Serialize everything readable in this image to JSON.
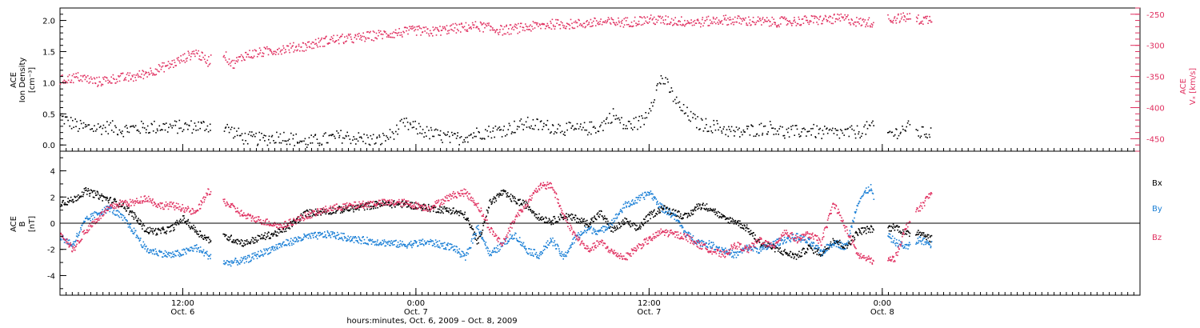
{
  "chart_data": [
    {
      "type": "scatter",
      "panel": "top",
      "ylabel_lines": [
        "ACE",
        "Ion Density",
        "[cm⁻³]"
      ],
      "y2label_lines": [
        "ACE",
        "Vₓ [km/s]"
      ],
      "ylim": [
        -0.1,
        2.2
      ],
      "y_ticks": [
        0.0,
        0.5,
        1.0,
        1.5,
        2.0
      ],
      "y_tick_labels": [
        "0.0",
        "0.5",
        "1.0",
        "1.5",
        "2.0"
      ],
      "y2lim": [
        -470,
        -240
      ],
      "y2_ticks": [
        -450,
        -400,
        -350,
        -300,
        -250
      ],
      "y2_tick_labels": [
        "-450",
        "-400",
        "-350",
        "-300",
        "-250"
      ],
      "series": [
        {
          "color": "#000000",
          "axis": "left",
          "t": [
            0,
            3,
            6,
            8,
            10,
            12,
            16,
            20,
            24,
            27,
            30,
            33,
            36,
            40,
            43,
            46,
            48,
            50,
            52,
            54,
            56,
            60,
            64,
            68,
            72,
            76,
            80,
            84,
            88,
            90,
            92,
            95,
            98,
            101,
            104,
            107,
            110,
            113,
            116,
            118,
            120,
            122,
            124,
            126,
            128,
            130,
            132,
            134,
            136,
            138,
            140,
            142
          ],
          "values": [
            0.45,
            0.3,
            0.28,
            0.3,
            0.25,
            0.28,
            0.3,
            0.3,
            0.32,
            0.28,
            0.12,
            0.1,
            0.15,
            0.05,
            0.1,
            0.15,
            0.12,
            0.1,
            0.08,
            0.18,
            0.35,
            0.2,
            0.1,
            0.2,
            0.25,
            0.35,
            0.3,
            0.25,
            0.3,
            0.5,
            0.3,
            0.4,
            1.1,
            0.6,
            0.35,
            0.3,
            0.2,
            0.25,
            0.3,
            0.2,
            0.22,
            0.25,
            0.2,
            0.2,
            0.2,
            0.22,
            0.3,
            0.2,
            0.2,
            0.3,
            0.2,
            0.2
          ]
        },
        {
          "color": "#e03060",
          "axis": "right",
          "t": [
            0,
            3,
            6,
            9,
            12,
            15,
            18,
            20,
            22,
            24,
            26,
            28,
            30,
            33,
            36,
            40,
            44,
            48,
            52,
            54,
            56,
            58,
            60,
            64,
            68,
            72,
            76,
            80,
            84,
            88,
            92,
            96,
            100,
            104,
            108,
            112,
            116,
            120,
            124,
            128,
            130,
            132,
            134,
            136,
            138,
            140,
            142
          ],
          "values": [
            -355,
            -350,
            -358,
            -352,
            -350,
            -340,
            -330,
            -320,
            -310,
            -325,
            -305,
            -330,
            -315,
            -310,
            -305,
            -300,
            -290,
            -288,
            -282,
            -280,
            -278,
            -275,
            -278,
            -272,
            -268,
            -275,
            -270,
            -265,
            -265,
            -262,
            -262,
            -258,
            -260,
            -262,
            -258,
            -260,
            -262,
            -260,
            -258,
            -256,
            -262,
            -262,
            -258,
            -256,
            -254,
            -258,
            -257
          ]
        }
      ]
    },
    {
      "type": "scatter",
      "panel": "bottom",
      "ylabel_lines": [
        "ACE",
        "B",
        "[nT]"
      ],
      "ylim": [
        -5.5,
        5.5
      ],
      "y_ticks": [
        -4,
        -2,
        0,
        2,
        4
      ],
      "y_tick_labels": [
        "-4",
        "-2",
        "0",
        "2",
        "4"
      ],
      "series": [
        {
          "name": "Bx",
          "color": "#000000",
          "t": [
            0,
            2,
            4,
            6,
            8,
            10,
            12,
            14,
            16,
            18,
            20,
            22,
            24,
            27,
            30,
            33,
            36,
            40,
            44,
            48,
            52,
            56,
            60,
            64,
            66,
            68,
            70,
            72,
            74,
            76,
            78,
            80,
            82,
            84,
            86,
            88,
            90,
            92,
            94,
            96,
            98,
            100,
            102,
            104,
            106,
            108,
            110,
            112,
            114,
            116,
            118,
            120,
            122,
            124,
            126,
            128,
            130,
            132,
            134,
            136,
            138,
            140,
            142
          ],
          "values": [
            1.6,
            1.8,
            2.5,
            2.2,
            1.8,
            1.5,
            0.6,
            -0.5,
            -0.6,
            -0.4,
            0.4,
            -0.5,
            -1.2,
            -1.0,
            -1.5,
            -1.0,
            -0.6,
            0.8,
            1.0,
            1.2,
            1.5,
            1.5,
            1.2,
            1.0,
            0.6,
            -1.4,
            1.6,
            2.4,
            1.8,
            1.4,
            0.5,
            0.2,
            0.6,
            0.4,
            0.0,
            0.8,
            -0.5,
            0.2,
            -0.4,
            0.6,
            1.2,
            0.9,
            0.5,
            1.4,
            1.2,
            0.4,
            0.2,
            -0.4,
            -1.5,
            -1.8,
            -2.2,
            -2.5,
            -1.8,
            -2.3,
            -1.2,
            -1.8,
            -0.6,
            -0.4,
            -0.5,
            -0.2,
            -0.8,
            -0.6,
            -1.2
          ]
        },
        {
          "name": "By",
          "color": "#1a7fd6",
          "t": [
            0,
            2,
            4,
            6,
            8,
            10,
            12,
            14,
            16,
            18,
            20,
            22,
            24,
            27,
            30,
            33,
            36,
            40,
            44,
            48,
            52,
            56,
            60,
            64,
            66,
            68,
            70,
            72,
            74,
            76,
            78,
            80,
            82,
            84,
            86,
            88,
            90,
            92,
            94,
            96,
            98,
            100,
            102,
            104,
            106,
            108,
            110,
            112,
            114,
            116,
            118,
            120,
            122,
            124,
            126,
            128,
            130,
            132,
            134,
            136,
            138,
            140,
            142
          ],
          "values": [
            -1.0,
            -1.6,
            0.2,
            0.8,
            1.2,
            0.5,
            -0.6,
            -2.0,
            -2.2,
            -2.4,
            -2.2,
            -1.8,
            -2.4,
            -3.0,
            -2.8,
            -2.2,
            -1.6,
            -1.0,
            -0.8,
            -1.2,
            -1.4,
            -1.6,
            -1.4,
            -1.8,
            -2.6,
            -0.2,
            -2.4,
            -1.6,
            -0.8,
            -2.0,
            -2.4,
            -1.2,
            -2.6,
            -1.0,
            -0.4,
            -0.6,
            0.2,
            1.4,
            1.8,
            2.4,
            1.2,
            0.6,
            -0.8,
            -1.4,
            -1.6,
            -2.0,
            -2.4,
            -1.8,
            -2.0,
            -1.6,
            -1.2,
            -1.0,
            -1.4,
            -2.2,
            -1.4,
            -1.8,
            1.8,
            2.8,
            -0.6,
            -1.4,
            -1.8,
            -1.2,
            -1.6
          ]
        },
        {
          "name": "Bz",
          "color": "#e03060",
          "t": [
            0,
            2,
            4,
            6,
            8,
            10,
            12,
            14,
            16,
            18,
            20,
            22,
            24,
            27,
            30,
            33,
            36,
            40,
            44,
            48,
            52,
            56,
            60,
            64,
            66,
            68,
            70,
            72,
            74,
            76,
            78,
            80,
            82,
            84,
            86,
            88,
            90,
            92,
            94,
            96,
            98,
            100,
            102,
            104,
            106,
            108,
            110,
            112,
            114,
            116,
            118,
            120,
            122,
            124,
            126,
            128,
            130,
            132,
            134,
            136,
            138,
            140,
            142
          ],
          "values": [
            -0.6,
            -2.0,
            -0.6,
            0.4,
            1.2,
            1.6,
            1.6,
            2.0,
            1.4,
            1.4,
            1.2,
            0.8,
            2.4,
            1.6,
            0.6,
            0.2,
            -0.2,
            0.6,
            1.2,
            1.4,
            1.6,
            1.6,
            1.2,
            2.2,
            2.4,
            1.4,
            -0.4,
            -1.6,
            0.4,
            1.6,
            2.8,
            3.0,
            0.6,
            -1.0,
            -2.0,
            -1.4,
            -2.2,
            -2.6,
            -1.8,
            -1.2,
            -0.6,
            -0.8,
            -1.0,
            -1.6,
            -2.0,
            -2.4,
            -1.6,
            -2.0,
            -1.2,
            -1.8,
            -0.6,
            -1.2,
            -0.8,
            -1.4,
            1.6,
            -0.4,
            -2.4,
            -2.8,
            -3.0,
            -2.6,
            0.0,
            1.2,
            2.4
          ]
        }
      ]
    }
  ],
  "x_axis": {
    "title": "hours:minutes, Oct.  6, 2009 – Oct.  8, 2009",
    "range_hours": [
      0,
      176
    ],
    "major_ticks": [
      {
        "t": 20,
        "time": "12:00",
        "date": "Oct. 6"
      },
      {
        "t": 58,
        "time": "0:00",
        "date": "Oct. 7"
      },
      {
        "t": 96,
        "time": "12:00",
        "date": "Oct. 7"
      },
      {
        "t": 134,
        "time": "0:00",
        "date": "Oct. 8"
      }
    ]
  },
  "legend": [
    {
      "label": "Bx",
      "color": "#000000"
    },
    {
      "label": "By",
      "color": "#1a7fd6"
    },
    {
      "label": "Bz",
      "color": "#e03060"
    }
  ]
}
